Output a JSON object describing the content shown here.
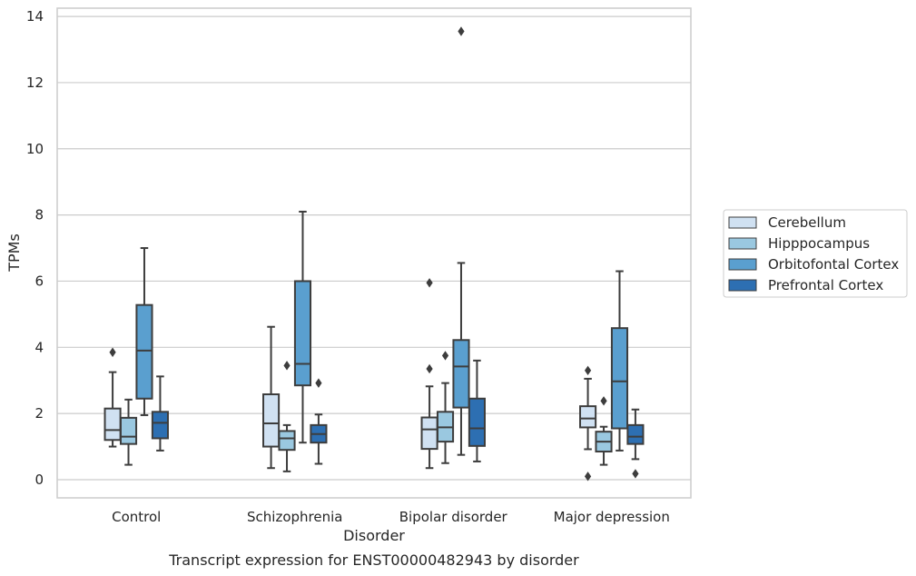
{
  "chart_data": {
    "type": "box",
    "title": "",
    "caption": "Transcript expression for ENST00000482943 by disorder",
    "xlabel": "Disorder",
    "ylabel": "TPMs",
    "ylim": [
      -0.55,
      14.25
    ],
    "yticks": [
      0,
      2,
      4,
      6,
      8,
      10,
      12,
      14
    ],
    "grid": "horizontal",
    "legend_position": "right",
    "categories": [
      "Control",
      "Schizophrenia",
      "Bipolar disorder",
      "Major depression"
    ],
    "series": [
      {
        "name": "Cerebellum",
        "color": "#d0e1f2",
        "boxes": [
          {
            "whisker_low": 1.0,
            "q1": 1.2,
            "median": 1.5,
            "q3": 2.15,
            "whisker_high": 3.25,
            "outliers": [
              3.85
            ]
          },
          {
            "whisker_low": 0.35,
            "q1": 1.0,
            "median": 1.7,
            "q3": 2.58,
            "whisker_high": 4.62,
            "outliers": []
          },
          {
            "whisker_low": 0.35,
            "q1": 0.93,
            "median": 1.52,
            "q3": 1.88,
            "whisker_high": 2.82,
            "outliers": [
              3.35,
              5.95
            ]
          },
          {
            "whisker_low": 0.92,
            "q1": 1.58,
            "median": 1.85,
            "q3": 2.22,
            "whisker_high": 3.05,
            "outliers": [
              3.3,
              0.1
            ]
          }
        ]
      },
      {
        "name": "Hipppocampus",
        "color": "#9ac8e0",
        "boxes": [
          {
            "whisker_low": 0.45,
            "q1": 1.08,
            "median": 1.3,
            "q3": 1.87,
            "whisker_high": 2.42,
            "outliers": []
          },
          {
            "whisker_low": 0.25,
            "q1": 0.9,
            "median": 1.25,
            "q3": 1.47,
            "whisker_high": 1.65,
            "outliers": [
              3.45
            ]
          },
          {
            "whisker_low": 0.5,
            "q1": 1.15,
            "median": 1.58,
            "q3": 2.05,
            "whisker_high": 2.92,
            "outliers": [
              3.75
            ]
          },
          {
            "whisker_low": 0.45,
            "q1": 0.85,
            "median": 1.15,
            "q3": 1.45,
            "whisker_high": 1.6,
            "outliers": [
              2.38
            ]
          }
        ]
      },
      {
        "name": "Orbitofontal Cortex",
        "color": "#5a9fcf",
        "boxes": [
          {
            "whisker_low": 1.95,
            "q1": 2.45,
            "median": 3.9,
            "q3": 5.28,
            "whisker_high": 7.0,
            "outliers": []
          },
          {
            "whisker_low": 1.12,
            "q1": 2.85,
            "median": 3.5,
            "q3": 6.0,
            "whisker_high": 8.1,
            "outliers": []
          },
          {
            "whisker_low": 0.75,
            "q1": 2.18,
            "median": 3.42,
            "q3": 4.22,
            "whisker_high": 6.55,
            "outliers": [
              13.55
            ]
          },
          {
            "whisker_low": 0.88,
            "q1": 1.55,
            "median": 2.97,
            "q3": 4.58,
            "whisker_high": 6.3,
            "outliers": []
          }
        ]
      },
      {
        "name": "Prefrontal Cortex",
        "color": "#2d6fb2",
        "boxes": [
          {
            "whisker_low": 0.88,
            "q1": 1.25,
            "median": 1.72,
            "q3": 2.05,
            "whisker_high": 3.12,
            "outliers": []
          },
          {
            "whisker_low": 0.48,
            "q1": 1.12,
            "median": 1.38,
            "q3": 1.65,
            "whisker_high": 1.97,
            "outliers": [
              2.92
            ]
          },
          {
            "whisker_low": 0.55,
            "q1": 1.02,
            "median": 1.55,
            "q3": 2.45,
            "whisker_high": 3.6,
            "outliers": []
          },
          {
            "whisker_low": 0.62,
            "q1": 1.08,
            "median": 1.3,
            "q3": 1.65,
            "whisker_high": 2.12,
            "outliers": [
              0.18
            ]
          }
        ]
      }
    ]
  }
}
